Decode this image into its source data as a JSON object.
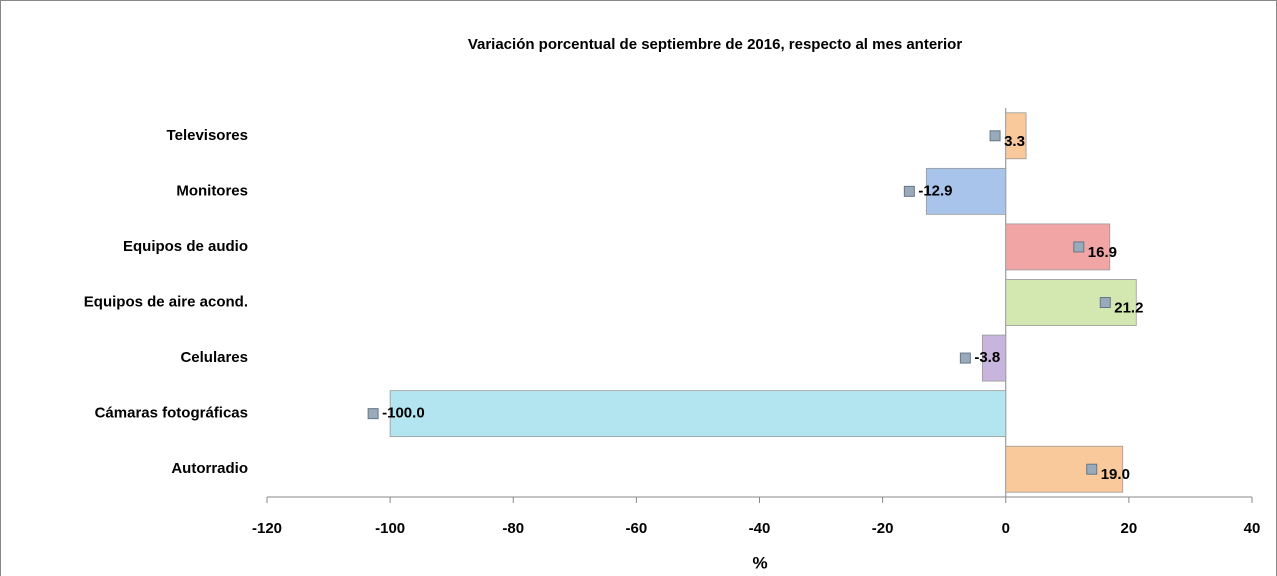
{
  "chart_data": {
    "type": "hbar",
    "title": "Variación porcentual de septiembre de 2016, respecto al mes anterior",
    "xlabel": "%",
    "categories": [
      "Televisores",
      "Monitores",
      "Equipos de audio",
      "Equipos de aire acond.",
      "Celulares",
      "Cámaras fotográficas",
      "Autorradio"
    ],
    "values": [
      3.3,
      -12.9,
      16.9,
      21.2,
      -3.8,
      -100,
      19
    ],
    "value_labels": [
      "3.3",
      "-12.9",
      "16.9",
      "21.2",
      "-3.8",
      "-100.0",
      "19.0"
    ],
    "colors": [
      "#f9c89b",
      "#a9c4eb",
      "#f2a5a5",
      "#d3e8b0",
      "#c8b5dd",
      "#b3e5f0",
      "#f9c89b"
    ],
    "xlim": [
      -120,
      40
    ],
    "xticks": [
      -120,
      -100,
      -80,
      -60,
      -40,
      -20,
      0,
      20,
      40
    ]
  }
}
